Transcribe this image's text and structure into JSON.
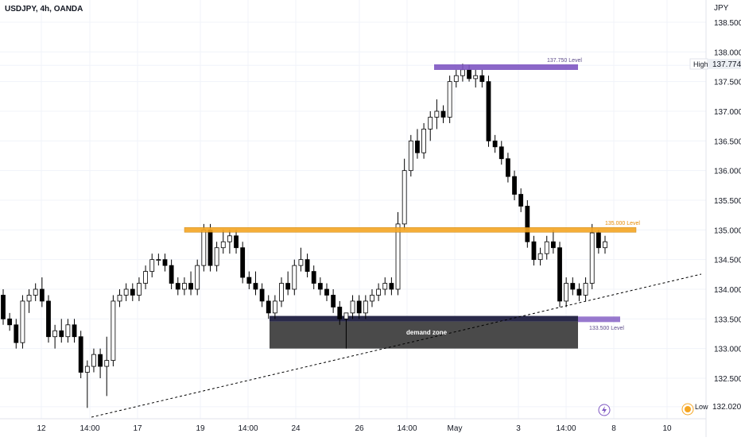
{
  "header": {
    "symbol_line": "USDJPY, 4h, OANDA"
  },
  "axis": {
    "currency": "JPY"
  },
  "markers": {
    "high_label": "High",
    "high_value": "137.774",
    "low_label": "Low",
    "low_value": "132.020"
  },
  "annotations": {
    "resistance_label": "135.000 Level",
    "top_label": "137.750 Level",
    "support_label": "133.500 Level",
    "demand_label": "demand zone"
  },
  "colors": {
    "bull_fill": "#ffffff",
    "bear_fill": "#000000",
    "candle_stroke": "#000000",
    "orange": "#f5a623",
    "purple": "#7e57c2",
    "navy": "#2a2a4a",
    "gray_zone": "#4a4a4a",
    "grid": "#f0f3fa",
    "axis_text": "#131722"
  },
  "chart_data": {
    "type": "candlestick",
    "title": "USDJPY, 4h, OANDA",
    "ylabel": "JPY",
    "ylim": [
      131.9,
      138.7
    ],
    "y_ticks": [
      "138.500",
      "138.000",
      "137.500",
      "137.000",
      "136.500",
      "136.000",
      "135.500",
      "135.000",
      "134.500",
      "134.000",
      "133.500",
      "133.000",
      "132.500"
    ],
    "x_ticks": [
      "12",
      "14:00",
      "17",
      "19",
      "14:00",
      "24",
      "26",
      "14:00",
      "May",
      "3",
      "14:00",
      "8",
      "10"
    ],
    "levels": [
      {
        "name": "135.000 Level",
        "value": 135.0
      },
      {
        "name": "137.750 Level",
        "value": 137.75
      },
      {
        "name": "133.500 Level",
        "value": 133.5
      }
    ],
    "zones": [
      {
        "name": "demand zone",
        "from": 133.0,
        "to": 133.55
      }
    ],
    "high": 137.774,
    "low": 132.02,
    "candles": [
      [
        133.9,
        134.0,
        133.4,
        133.5
      ],
      [
        133.5,
        133.6,
        133.3,
        133.4
      ],
      [
        133.4,
        133.5,
        133.0,
        133.1
      ],
      [
        133.1,
        133.9,
        133.0,
        133.8
      ],
      [
        133.8,
        134.0,
        133.6,
        133.9
      ],
      [
        133.9,
        134.1,
        133.8,
        134.0
      ],
      [
        134.0,
        134.2,
        133.7,
        133.8
      ],
      [
        133.8,
        133.9,
        133.1,
        133.2
      ],
      [
        133.2,
        133.4,
        133.0,
        133.3
      ],
      [
        133.3,
        133.5,
        133.1,
        133.2
      ],
      [
        133.2,
        133.5,
        133.1,
        133.4
      ],
      [
        133.4,
        133.5,
        133.1,
        133.2
      ],
      [
        133.2,
        133.3,
        132.5,
        132.6
      ],
      [
        132.6,
        132.8,
        132.0,
        132.7
      ],
      [
        132.7,
        133.0,
        132.6,
        132.9
      ],
      [
        132.9,
        133.0,
        132.5,
        132.7
      ],
      [
        132.7,
        133.2,
        132.2,
        132.8
      ],
      [
        132.8,
        133.9,
        132.7,
        133.8
      ],
      [
        133.8,
        134.0,
        133.7,
        133.9
      ],
      [
        133.9,
        134.1,
        133.8,
        134.0
      ],
      [
        134.0,
        134.1,
        133.8,
        133.9
      ],
      [
        133.9,
        134.2,
        133.8,
        134.1
      ],
      [
        134.1,
        134.4,
        134.0,
        134.3
      ],
      [
        134.3,
        134.6,
        134.2,
        134.5
      ],
      [
        134.5,
        134.6,
        134.4,
        134.5
      ],
      [
        134.5,
        134.6,
        134.3,
        134.4
      ],
      [
        134.4,
        134.5,
        134.0,
        134.1
      ],
      [
        134.1,
        134.2,
        133.9,
        134.0
      ],
      [
        134.0,
        134.2,
        133.9,
        134.1
      ],
      [
        134.1,
        134.3,
        133.9,
        134.0
      ],
      [
        134.0,
        134.5,
        133.9,
        134.4
      ],
      [
        134.4,
        135.1,
        134.3,
        135.0
      ],
      [
        135.0,
        135.1,
        134.3,
        134.4
      ],
      [
        134.4,
        134.8,
        134.3,
        134.7
      ],
      [
        134.7,
        135.0,
        134.6,
        134.8
      ],
      [
        134.8,
        135.0,
        134.6,
        134.9
      ],
      [
        134.9,
        135.0,
        134.6,
        134.7
      ],
      [
        134.7,
        134.8,
        134.1,
        134.2
      ],
      [
        134.2,
        134.3,
        134.0,
        134.1
      ],
      [
        134.1,
        134.3,
        133.9,
        134.0
      ],
      [
        134.0,
        134.1,
        133.7,
        133.8
      ],
      [
        133.8,
        133.9,
        133.5,
        133.6
      ],
      [
        133.6,
        133.9,
        133.5,
        133.8
      ],
      [
        133.8,
        134.2,
        133.7,
        134.1
      ],
      [
        134.1,
        134.3,
        133.9,
        134.0
      ],
      [
        134.0,
        134.5,
        133.9,
        134.4
      ],
      [
        134.4,
        134.7,
        134.3,
        134.5
      ],
      [
        134.5,
        134.6,
        134.2,
        134.3
      ],
      [
        134.3,
        134.4,
        134.0,
        134.1
      ],
      [
        134.1,
        134.2,
        133.9,
        134.0
      ],
      [
        134.0,
        134.1,
        133.8,
        133.9
      ],
      [
        133.9,
        134.0,
        133.6,
        133.7
      ],
      [
        133.7,
        133.8,
        133.4,
        133.5
      ],
      [
        133.5,
        133.6,
        133.0,
        133.6
      ],
      [
        133.6,
        133.9,
        133.5,
        133.8
      ],
      [
        133.8,
        133.9,
        133.5,
        133.6
      ],
      [
        133.6,
        133.9,
        133.5,
        133.8
      ],
      [
        133.8,
        134.0,
        133.7,
        133.9
      ],
      [
        133.9,
        134.1,
        133.8,
        134.0
      ],
      [
        134.0,
        134.2,
        133.9,
        134.1
      ],
      [
        134.1,
        134.2,
        133.9,
        134.0
      ],
      [
        134.0,
        135.3,
        133.9,
        135.1
      ],
      [
        135.1,
        136.2,
        135.0,
        136.0
      ],
      [
        136.0,
        136.6,
        135.9,
        136.5
      ],
      [
        136.5,
        136.7,
        136.2,
        136.3
      ],
      [
        136.3,
        136.8,
        136.2,
        136.7
      ],
      [
        136.7,
        137.0,
        136.5,
        136.9
      ],
      [
        136.9,
        137.2,
        136.7,
        137.0
      ],
      [
        137.0,
        137.1,
        136.8,
        136.9
      ],
      [
        136.9,
        137.6,
        136.8,
        137.5
      ],
      [
        137.5,
        137.7,
        137.4,
        137.6
      ],
      [
        137.6,
        137.8,
        137.5,
        137.7
      ],
      [
        137.7,
        137.78,
        137.5,
        137.55
      ],
      [
        137.55,
        137.7,
        137.4,
        137.6
      ],
      [
        137.6,
        137.7,
        137.4,
        137.5
      ],
      [
        137.5,
        137.6,
        136.4,
        136.5
      ],
      [
        136.5,
        136.6,
        136.3,
        136.4
      ],
      [
        136.4,
        136.5,
        136.1,
        136.2
      ],
      [
        136.2,
        136.3,
        135.8,
        135.9
      ],
      [
        135.9,
        136.0,
        135.5,
        135.6
      ],
      [
        135.6,
        135.7,
        135.3,
        135.4
      ],
      [
        135.4,
        135.5,
        134.7,
        134.8
      ],
      [
        134.8,
        134.9,
        134.4,
        134.5
      ],
      [
        134.5,
        134.7,
        134.4,
        134.6
      ],
      [
        134.6,
        134.9,
        134.5,
        134.8
      ],
      [
        134.8,
        135.0,
        134.6,
        134.7
      ],
      [
        134.7,
        134.8,
        133.7,
        133.8
      ],
      [
        133.8,
        134.2,
        133.7,
        134.1
      ],
      [
        134.1,
        134.2,
        133.9,
        134.0
      ],
      [
        134.0,
        134.1,
        133.8,
        133.9
      ],
      [
        133.9,
        134.2,
        133.8,
        134.1
      ],
      [
        134.1,
        135.1,
        134.0,
        134.95
      ],
      [
        134.95,
        135.0,
        134.6,
        134.7
      ],
      [
        134.7,
        134.9,
        134.6,
        134.8
      ]
    ]
  }
}
